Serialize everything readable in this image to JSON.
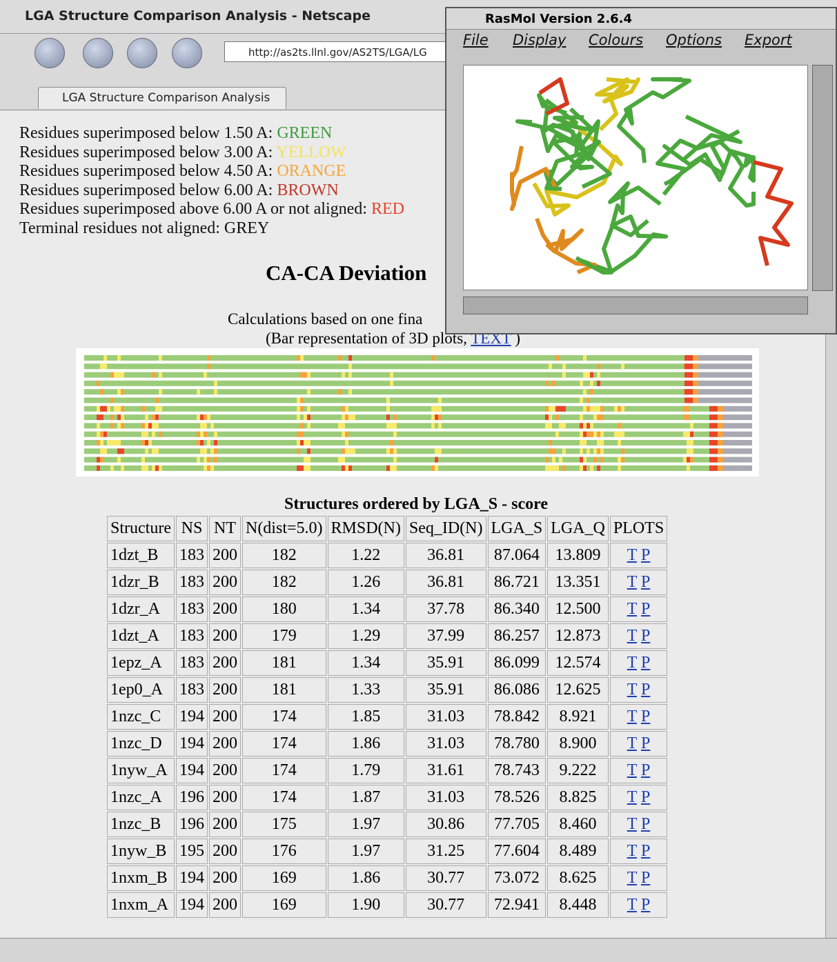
{
  "browser": {
    "title": "LGA Structure Comparison Analysis - Netscape",
    "url": "http://as2ts.llnl.gov/AS2TS/LGA/LG",
    "tab": "LGA Structure Comparison Analysis"
  },
  "legend": [
    {
      "text": "Residues superimposed below 1.50 A: ",
      "color_name": "GREEN",
      "color": "#3f9a3f"
    },
    {
      "text": "Residues superimposed below 3.00 A: ",
      "color_name": "YELLOW",
      "color": "#f4e35a"
    },
    {
      "text": "Residues superimposed below 4.50 A: ",
      "color_name": "ORANGE",
      "color": "#f5a63a"
    },
    {
      "text": "Residues superimposed below 6.00 A: ",
      "color_name": "BROWN",
      "color": "#c0392b"
    },
    {
      "text": "Residues superimposed above 6.00 A or not aligned: ",
      "color_name": "RED",
      "color": "#e8402a"
    },
    {
      "text": "Terminal residues not aligned: GREY"
    }
  ],
  "heading": "CA-CA Deviation",
  "calc_note": "Calculations based on one fina",
  "bar_note": {
    "before": "(Bar representation of 3D plots, ",
    "link": "TEXT",
    "after": " )"
  },
  "table": {
    "title": "Structures ordered by LGA_S - score",
    "headers": [
      "Structure",
      "NS",
      "NT",
      "N(dist=5.0)",
      "RMSD(N)",
      "Seq_ID(N)",
      "LGA_S",
      "LGA_Q",
      "PLOTS"
    ],
    "plot_links": [
      "T",
      "P"
    ],
    "rows": [
      [
        "1dzt_B",
        "183",
        "200",
        "182",
        "1.22",
        "36.81",
        "87.064",
        "13.809"
      ],
      [
        "1dzr_B",
        "183",
        "200",
        "182",
        "1.26",
        "36.81",
        "86.721",
        "13.351"
      ],
      [
        "1dzr_A",
        "183",
        "200",
        "180",
        "1.34",
        "37.78",
        "86.340",
        "12.500"
      ],
      [
        "1dzt_A",
        "183",
        "200",
        "179",
        "1.29",
        "37.99",
        "86.257",
        "12.873"
      ],
      [
        "1epz_A",
        "183",
        "200",
        "181",
        "1.34",
        "35.91",
        "86.099",
        "12.574"
      ],
      [
        "1ep0_A",
        "183",
        "200",
        "181",
        "1.33",
        "35.91",
        "86.086",
        "12.625"
      ],
      [
        "1nzc_C",
        "194",
        "200",
        "174",
        "1.85",
        "31.03",
        "78.842",
        "8.921"
      ],
      [
        "1nzc_D",
        "194",
        "200",
        "174",
        "1.86",
        "31.03",
        "78.780",
        "8.900"
      ],
      [
        "1nyw_A",
        "194",
        "200",
        "174",
        "1.79",
        "31.61",
        "78.743",
        "9.222"
      ],
      [
        "1nzc_A",
        "196",
        "200",
        "174",
        "1.87",
        "31.03",
        "78.526",
        "8.825"
      ],
      [
        "1nzc_B",
        "196",
        "200",
        "175",
        "1.97",
        "30.86",
        "77.705",
        "8.460"
      ],
      [
        "1nyw_B",
        "195",
        "200",
        "176",
        "1.97",
        "31.25",
        "77.604",
        "8.489"
      ],
      [
        "1nxm_B",
        "194",
        "200",
        "169",
        "1.86",
        "30.77",
        "73.072",
        "8.625"
      ],
      [
        "1nxm_A",
        "194",
        "200",
        "169",
        "1.90",
        "30.77",
        "72.941",
        "8.448"
      ]
    ]
  },
  "rasmol": {
    "title": "RasMol Version 2.6.4",
    "menu": [
      "File",
      "Display",
      "Colours",
      "Options",
      "Export"
    ]
  }
}
